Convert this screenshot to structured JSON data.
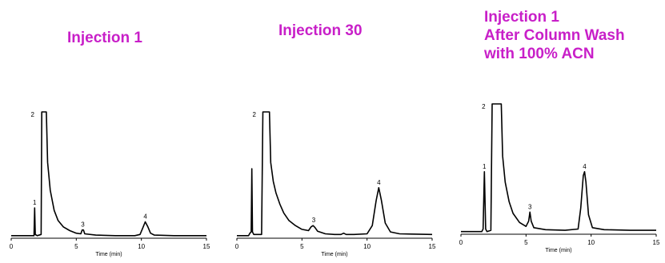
{
  "titles": [
    [
      "Injection 1"
    ],
    [
      "Injection 30"
    ],
    [
      "Injection 1",
      "After Column Wash",
      "with 100% ACN"
    ]
  ],
  "colors": {
    "title": "#c81fc8",
    "trace": "#000000"
  },
  "chart_data": [
    {
      "type": "line",
      "title": "Injection 1",
      "xlabel": "Time (min)",
      "xlim": [
        0,
        15
      ],
      "xticks": [
        0,
        5,
        10,
        15
      ],
      "peaks": [
        {
          "label": "1",
          "time": 1.8
        },
        {
          "label": "2",
          "time": 2.5
        },
        {
          "label": "3",
          "time": 5.5
        },
        {
          "label": "4",
          "time": 10.3
        }
      ],
      "trace": [
        [
          0,
          0.02
        ],
        [
          1.6,
          0.02
        ],
        [
          1.75,
          0.02
        ],
        [
          1.8,
          0.24
        ],
        [
          1.85,
          0.03
        ],
        [
          2.0,
          0.02
        ],
        [
          2.3,
          0.03
        ],
        [
          2.35,
          1.0
        ],
        [
          2.7,
          1.0
        ],
        [
          2.8,
          0.6
        ],
        [
          3.0,
          0.38
        ],
        [
          3.3,
          0.22
        ],
        [
          3.6,
          0.14
        ],
        [
          4.0,
          0.09
        ],
        [
          4.5,
          0.06
        ],
        [
          5.0,
          0.04
        ],
        [
          5.35,
          0.035
        ],
        [
          5.45,
          0.065
        ],
        [
          5.55,
          0.065
        ],
        [
          5.65,
          0.035
        ],
        [
          6.5,
          0.025
        ],
        [
          8.0,
          0.02
        ],
        [
          9.5,
          0.02
        ],
        [
          9.9,
          0.03
        ],
        [
          10.1,
          0.08
        ],
        [
          10.3,
          0.13
        ],
        [
          10.5,
          0.09
        ],
        [
          10.7,
          0.04
        ],
        [
          11.0,
          0.025
        ],
        [
          12.5,
          0.02
        ],
        [
          15,
          0.02
        ]
      ]
    },
    {
      "type": "line",
      "title": "Injection 30",
      "xlabel": "Time (min)",
      "xlim": [
        0,
        15
      ],
      "xticks": [
        0,
        5,
        10,
        15
      ],
      "peaks": [
        {
          "label": "2",
          "time": 2.2
        },
        {
          "label": "3",
          "time": 5.9
        },
        {
          "label": "4",
          "time": 10.9
        }
      ],
      "trace": [
        [
          0,
          0.02
        ],
        [
          0.9,
          0.02
        ],
        [
          1.0,
          0.04
        ],
        [
          1.1,
          0.05
        ],
        [
          1.15,
          0.55
        ],
        [
          1.2,
          0.05
        ],
        [
          1.3,
          0.03
        ],
        [
          1.9,
          0.03
        ],
        [
          2.0,
          1.0
        ],
        [
          2.5,
          1.0
        ],
        [
          2.6,
          0.6
        ],
        [
          2.8,
          0.45
        ],
        [
          3.0,
          0.36
        ],
        [
          3.3,
          0.27
        ],
        [
          3.6,
          0.2
        ],
        [
          4.0,
          0.14
        ],
        [
          4.5,
          0.1
        ],
        [
          5.0,
          0.07
        ],
        [
          5.5,
          0.06
        ],
        [
          5.7,
          0.09
        ],
        [
          5.85,
          0.1
        ],
        [
          6.0,
          0.085
        ],
        [
          6.2,
          0.055
        ],
        [
          6.8,
          0.035
        ],
        [
          7.5,
          0.03
        ],
        [
          8.0,
          0.03
        ],
        [
          8.2,
          0.04
        ],
        [
          8.4,
          0.03
        ],
        [
          9.0,
          0.03
        ],
        [
          10.0,
          0.035
        ],
        [
          10.4,
          0.1
        ],
        [
          10.7,
          0.3
        ],
        [
          10.9,
          0.4
        ],
        [
          11.1,
          0.3
        ],
        [
          11.4,
          0.12
        ],
        [
          11.8,
          0.05
        ],
        [
          12.5,
          0.035
        ],
        [
          15,
          0.03
        ]
      ]
    },
    {
      "type": "line",
      "title": "Injection 1 After Column Wash with 100% ACN",
      "xlabel": "Time (min)",
      "xlim": [
        0,
        15
      ],
      "xticks": [
        0,
        5,
        10,
        15
      ],
      "peaks": [
        {
          "label": "1",
          "time": 1.8
        },
        {
          "label": "2",
          "time": 2.6
        },
        {
          "label": "3",
          "time": 5.3
        },
        {
          "label": "4",
          "time": 9.5
        }
      ],
      "trace": [
        [
          0,
          0.02
        ],
        [
          1.6,
          0.02
        ],
        [
          1.7,
          0.04
        ],
        [
          1.8,
          0.48
        ],
        [
          1.9,
          0.04
        ],
        [
          2.0,
          0.02
        ],
        [
          2.3,
          0.03
        ],
        [
          2.4,
          1.0
        ],
        [
          3.1,
          1.0
        ],
        [
          3.2,
          0.6
        ],
        [
          3.4,
          0.4
        ],
        [
          3.7,
          0.25
        ],
        [
          4.0,
          0.16
        ],
        [
          4.5,
          0.09
        ],
        [
          5.0,
          0.06
        ],
        [
          5.2,
          0.1
        ],
        [
          5.3,
          0.17
        ],
        [
          5.4,
          0.1
        ],
        [
          5.6,
          0.05
        ],
        [
          6.5,
          0.035
        ],
        [
          8.0,
          0.03
        ],
        [
          9.0,
          0.04
        ],
        [
          9.2,
          0.2
        ],
        [
          9.4,
          0.45
        ],
        [
          9.5,
          0.48
        ],
        [
          9.6,
          0.4
        ],
        [
          9.8,
          0.15
        ],
        [
          10.1,
          0.05
        ],
        [
          11.0,
          0.035
        ],
        [
          13,
          0.03
        ],
        [
          15,
          0.03
        ]
      ]
    }
  ]
}
